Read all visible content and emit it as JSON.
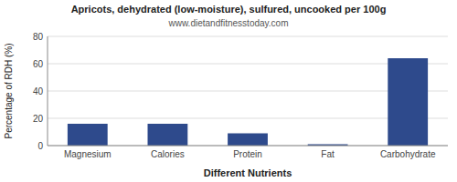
{
  "chart_data": {
    "type": "bar",
    "title": "Apricots, dehydrated (low-moisture), sulfured, uncooked per 100g",
    "subtitle": "www.dietandfitnesstoday.com",
    "categories": [
      "Magnesium",
      "Calories",
      "Protein",
      "Fat",
      "Carbohydrate"
    ],
    "values": [
      16,
      16,
      9,
      1,
      64
    ],
    "color": "#2e4a8c",
    "xlabel": "Different Nutrients",
    "ylabel": "Percentage of RDH (%)",
    "ylim": [
      0,
      80
    ],
    "yticks": [
      0,
      20,
      40,
      60,
      80
    ],
    "grid": true
  }
}
